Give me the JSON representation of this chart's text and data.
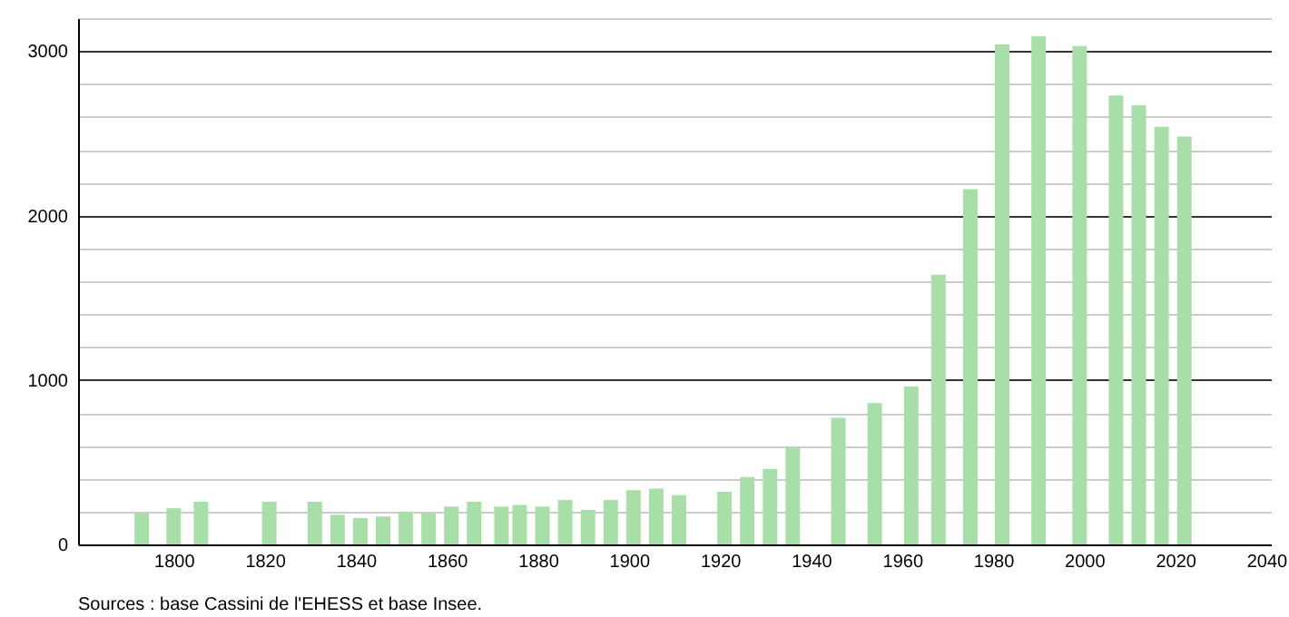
{
  "chart_data": {
    "type": "bar",
    "x": [
      1793,
      1800,
      1806,
      1821,
      1831,
      1836,
      1841,
      1846,
      1851,
      1856,
      1861,
      1866,
      1872,
      1876,
      1881,
      1886,
      1891,
      1896,
      1901,
      1906,
      1911,
      1921,
      1926,
      1931,
      1936,
      1946,
      1954,
      1962,
      1968,
      1975,
      1982,
      1990,
      1999,
      2007,
      2012,
      2017,
      2022
    ],
    "values": [
      190,
      220,
      260,
      260,
      260,
      180,
      160,
      170,
      200,
      190,
      230,
      260,
      230,
      240,
      230,
      270,
      210,
      270,
      330,
      340,
      300,
      320,
      410,
      460,
      590,
      770,
      860,
      960,
      1640,
      2160,
      3040,
      3090,
      3030,
      2730,
      2670,
      2540,
      2480
    ],
    "color": "#a8dfa8",
    "xlim": [
      1779,
      2041
    ],
    "xticks": [
      1800,
      1820,
      1840,
      1860,
      1880,
      1900,
      1920,
      1940,
      1960,
      1980,
      2000,
      2020,
      2040
    ],
    "ylim": [
      0,
      3200
    ],
    "yticks": [
      0,
      {
        "value": 200,
        "label": null
      },
      {
        "value": 400,
        "label": null
      },
      {
        "value": 600,
        "label": null
      },
      {
        "value": 800,
        "label": null
      },
      1000,
      {
        "value": 1200,
        "label": null
      },
      {
        "value": 1400,
        "label": null
      },
      {
        "value": 1600,
        "label": null
      },
      {
        "value": 1800,
        "label": null
      },
      2000,
      {
        "value": 2200,
        "label": null
      },
      {
        "value": 2400,
        "label": null
      },
      {
        "value": 2600,
        "label": null
      },
      {
        "value": 2800,
        "label": null
      },
      3000,
      {
        "value": 3200,
        "label": null
      }
    ],
    "grid": "y",
    "annotations": [
      "Sources : base Cassini de l'EHESS et base Insee."
    ]
  }
}
